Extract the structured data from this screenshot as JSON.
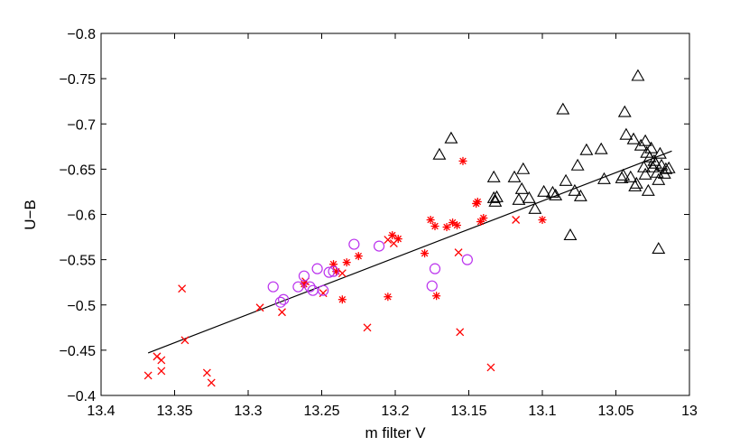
{
  "chart_data": {
    "type": "scatter",
    "title": "",
    "xlabel": "m filter V",
    "ylabel": "U−B",
    "x_reversed": true,
    "y_reversed": true,
    "xlim": [
      13.4,
      13.0
    ],
    "ylim": [
      -0.8,
      -0.4
    ],
    "x_ticks": [
      13.4,
      13.35,
      13.3,
      13.25,
      13.2,
      13.15,
      13.1,
      13.05,
      13.0
    ],
    "x_tick_labels": [
      "13.4",
      "13.35",
      "13.3",
      "13.25",
      "13.2",
      "13.15",
      "13.1",
      "13.05",
      "13"
    ],
    "y_ticks": [
      -0.8,
      -0.75,
      -0.7,
      -0.65,
      -0.6,
      -0.55,
      -0.5,
      -0.45,
      -0.4
    ],
    "y_tick_labels": [
      "−0.8",
      "−0.75",
      "−0.7",
      "−0.65",
      "−0.6",
      "−0.55",
      "−0.5",
      "−0.45",
      "−0.4"
    ],
    "grid": false,
    "series": [
      {
        "marker": "x",
        "color": "#ff0000",
        "points": [
          [
            13.368,
            -0.422
          ],
          [
            13.362,
            -0.443
          ],
          [
            13.359,
            -0.427
          ],
          [
            13.359,
            -0.439
          ],
          [
            13.345,
            -0.518
          ],
          [
            13.343,
            -0.461
          ],
          [
            13.328,
            -0.425
          ],
          [
            13.325,
            -0.414
          ],
          [
            13.292,
            -0.497
          ],
          [
            13.277,
            -0.492
          ],
          [
            13.261,
            -0.526
          ],
          [
            13.249,
            -0.513
          ],
          [
            13.236,
            -0.535
          ],
          [
            13.219,
            -0.475
          ],
          [
            13.205,
            -0.572
          ],
          [
            13.201,
            -0.568
          ],
          [
            13.157,
            -0.558
          ],
          [
            13.156,
            -0.47
          ],
          [
            13.135,
            -0.431
          ],
          [
            13.118,
            -0.594
          ]
        ]
      },
      {
        "marker": "asterisk",
        "color": "#ff0000",
        "points": [
          [
            13.262,
            -0.523
          ],
          [
            13.242,
            -0.545
          ],
          [
            13.24,
            -0.537
          ],
          [
            13.236,
            -0.506
          ],
          [
            13.233,
            -0.547
          ],
          [
            13.225,
            -0.554
          ],
          [
            13.205,
            -0.509
          ],
          [
            13.202,
            -0.577
          ],
          [
            13.198,
            -0.573
          ],
          [
            13.18,
            -0.557
          ],
          [
            13.176,
            -0.594
          ],
          [
            13.173,
            -0.587
          ],
          [
            13.172,
            -0.51
          ],
          [
            13.165,
            -0.586
          ],
          [
            13.161,
            -0.591
          ],
          [
            13.158,
            -0.588
          ],
          [
            13.154,
            -0.659
          ],
          [
            13.145,
            -0.612
          ],
          [
            13.144,
            -0.614
          ],
          [
            13.142,
            -0.592
          ],
          [
            13.14,
            -0.596
          ],
          [
            13.1,
            -0.594
          ]
        ]
      },
      {
        "marker": "circle",
        "color": "#bb33ee",
        "points": [
          [
            13.283,
            -0.52
          ],
          [
            13.278,
            -0.503
          ],
          [
            13.276,
            -0.506
          ],
          [
            13.266,
            -0.52
          ],
          [
            13.262,
            -0.532
          ],
          [
            13.258,
            -0.52
          ],
          [
            13.256,
            -0.516
          ],
          [
            13.253,
            -0.54
          ],
          [
            13.249,
            -0.516
          ],
          [
            13.245,
            -0.536
          ],
          [
            13.242,
            -0.537
          ],
          [
            13.228,
            -0.567
          ],
          [
            13.211,
            -0.565
          ],
          [
            13.175,
            -0.521
          ],
          [
            13.173,
            -0.54
          ],
          [
            13.151,
            -0.55
          ]
        ]
      },
      {
        "marker": "triangle",
        "color": "#000000",
        "points": [
          [
            13.17,
            -0.666
          ],
          [
            13.162,
            -0.684
          ],
          [
            13.133,
            -0.641
          ],
          [
            13.133,
            -0.618
          ],
          [
            13.132,
            -0.614
          ],
          [
            13.131,
            -0.619
          ],
          [
            13.119,
            -0.641
          ],
          [
            13.116,
            -0.616
          ],
          [
            13.114,
            -0.628
          ],
          [
            13.113,
            -0.65
          ],
          [
            13.109,
            -0.618
          ],
          [
            13.105,
            -0.606
          ],
          [
            13.099,
            -0.625
          ],
          [
            13.093,
            -0.624
          ],
          [
            13.091,
            -0.621
          ],
          [
            13.086,
            -0.716
          ],
          [
            13.084,
            -0.637
          ],
          [
            13.081,
            -0.577
          ],
          [
            13.078,
            -0.626
          ],
          [
            13.076,
            -0.654
          ],
          [
            13.074,
            -0.62
          ],
          [
            13.07,
            -0.671
          ],
          [
            13.06,
            -0.672
          ],
          [
            13.058,
            -0.639
          ],
          [
            13.046,
            -0.64
          ],
          [
            13.045,
            -0.643
          ],
          [
            13.044,
            -0.713
          ],
          [
            13.043,
            -0.688
          ],
          [
            13.04,
            -0.641
          ],
          [
            13.038,
            -0.683
          ],
          [
            13.037,
            -0.631
          ],
          [
            13.036,
            -0.634
          ],
          [
            13.035,
            -0.753
          ],
          [
            13.033,
            -0.676
          ],
          [
            13.031,
            -0.652
          ],
          [
            13.03,
            -0.681
          ],
          [
            13.03,
            -0.644
          ],
          [
            13.029,
            -0.668
          ],
          [
            13.028,
            -0.626
          ],
          [
            13.027,
            -0.663
          ],
          [
            13.026,
            -0.673
          ],
          [
            13.025,
            -0.652
          ],
          [
            13.024,
            -0.659
          ],
          [
            13.023,
            -0.656
          ],
          [
            13.022,
            -0.646
          ],
          [
            13.021,
            -0.562
          ],
          [
            13.021,
            -0.638
          ],
          [
            13.02,
            -0.667
          ],
          [
            13.019,
            -0.654
          ],
          [
            13.017,
            -0.645
          ],
          [
            13.016,
            -0.65
          ],
          [
            13.014,
            -0.651
          ]
        ]
      }
    ],
    "fit_line": {
      "x": [
        13.368,
        13.012
      ],
      "y": [
        -0.447,
        -0.67
      ]
    }
  }
}
